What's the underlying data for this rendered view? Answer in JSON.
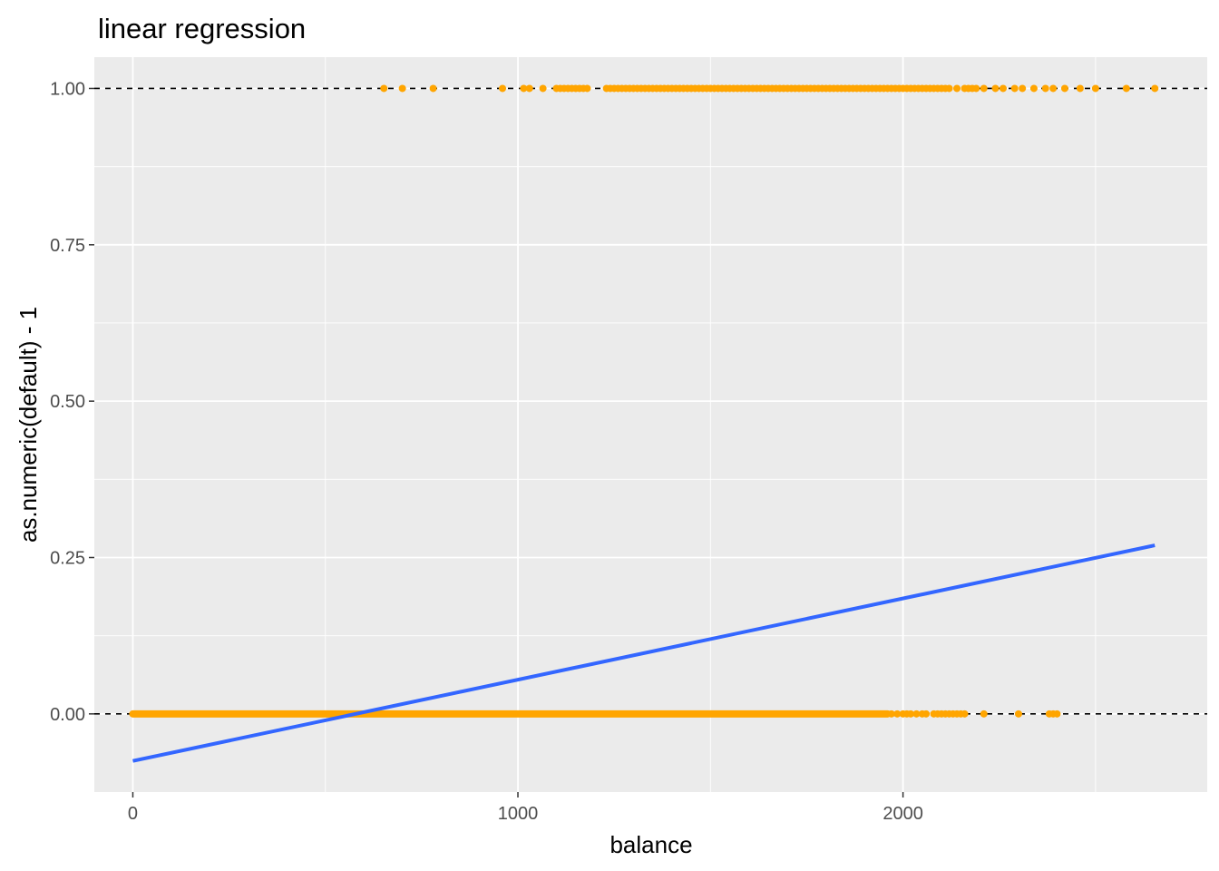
{
  "chart_data": {
    "type": "scatter",
    "title": "linear regression",
    "xlabel": "balance",
    "ylabel": "as.numeric(default) - 1",
    "xlim": [
      -100,
      2790
    ],
    "ylim": [
      -0.125,
      1.05
    ],
    "x_ticks": [
      0,
      1000,
      2000
    ],
    "x_tick_labels": [
      "0",
      "1000",
      "2000"
    ],
    "y_ticks": [
      0.0,
      0.25,
      0.5,
      0.75,
      1.0
    ],
    "y_tick_labels": [
      "0.00",
      "0.25",
      "0.50",
      "0.75",
      "1.00"
    ],
    "grid": true,
    "colors": {
      "panel": "#ebebeb",
      "grid": "#ffffff",
      "points": "#ffa500",
      "regression_line": "#3366ff",
      "reference_lines": "#000000"
    },
    "reference_lines_y": [
      0,
      1
    ],
    "regression_line": {
      "x": [
        0,
        2654
      ],
      "y": [
        -0.0752,
        0.2695
      ]
    },
    "series": [
      {
        "values_y": 1,
        "x": [
          652,
          700,
          780,
          960,
          1015,
          1030,
          1065,
          1100,
          1110,
          1120,
          1130,
          1140,
          1150,
          1160,
          1170,
          1180,
          1230,
          1240,
          1250,
          1260,
          1270,
          1280,
          1290,
          1300,
          1310,
          1320,
          1330,
          1340,
          1350,
          1360,
          1370,
          1380,
          1390,
          1400,
          1410,
          1420,
          1430,
          1440,
          1450,
          1460,
          1470,
          1480,
          1490,
          1500,
          1510,
          1520,
          1530,
          1540,
          1550,
          1560,
          1570,
          1580,
          1590,
          1600,
          1610,
          1620,
          1630,
          1640,
          1650,
          1660,
          1670,
          1680,
          1690,
          1700,
          1710,
          1720,
          1730,
          1740,
          1750,
          1760,
          1770,
          1780,
          1790,
          1800,
          1810,
          1820,
          1830,
          1840,
          1850,
          1860,
          1870,
          1880,
          1890,
          1900,
          1910,
          1920,
          1930,
          1940,
          1950,
          1960,
          1970,
          1980,
          1990,
          2000,
          2010,
          2020,
          2030,
          2040,
          2050,
          2060,
          2070,
          2080,
          2090,
          2100,
          2110,
          2120,
          2140,
          2160,
          2170,
          2180,
          2190,
          2210,
          2240,
          2260,
          2290,
          2310,
          2340,
          2370,
          2390,
          2420,
          2460,
          2500,
          2580,
          2654
        ]
      },
      {
        "values_y": 0,
        "x_range": [
          0,
          1960
        ],
        "x": [
          1970,
          1985,
          2000,
          2010,
          2020,
          2035,
          2050,
          2060,
          2080,
          2090,
          2100,
          2110,
          2120,
          2130,
          2140,
          2150,
          2160,
          2210,
          2300,
          2380,
          2390,
          2400
        ]
      }
    ]
  }
}
